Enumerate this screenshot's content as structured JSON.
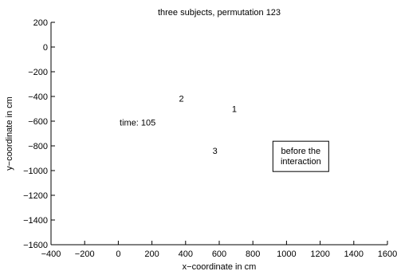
{
  "chart_data": {
    "type": "scatter",
    "title": "three subjects, permutation 123",
    "xlabel": "x−coordinate in cm",
    "ylabel": "y−coordinate in cm",
    "xlim": [
      -400,
      1600
    ],
    "ylim": [
      -1600,
      200
    ],
    "x_ticks": [
      -400,
      -200,
      0,
      200,
      400,
      600,
      800,
      1000,
      1200,
      1400,
      1600
    ],
    "y_ticks": [
      200,
      0,
      -200,
      -400,
      -600,
      -800,
      -1000,
      -1200,
      -1400,
      -1600
    ],
    "x_tick_labels": [
      "−400",
      "−200",
      "0",
      "200",
      "400",
      "600",
      "800",
      "1000",
      "1200",
      "1400",
      "1600"
    ],
    "y_tick_labels": [
      "200",
      "0",
      "−200",
      "−400",
      "−600",
      "−800",
      "−1000",
      "−1200",
      "−1400",
      "−1600"
    ],
    "grid": false,
    "points": [
      {
        "label": "1",
        "x": 690,
        "y": -500
      },
      {
        "label": "2",
        "x": 375,
        "y": -415
      },
      {
        "label": "3",
        "x": 575,
        "y": -840
      }
    ],
    "annotations": [
      {
        "text": "time: 105",
        "x": 115,
        "y": -610
      },
      {
        "text_lines": [
          "before the",
          "interaction"
        ],
        "x": 1085,
        "y": -885,
        "boxed": true
      }
    ]
  }
}
